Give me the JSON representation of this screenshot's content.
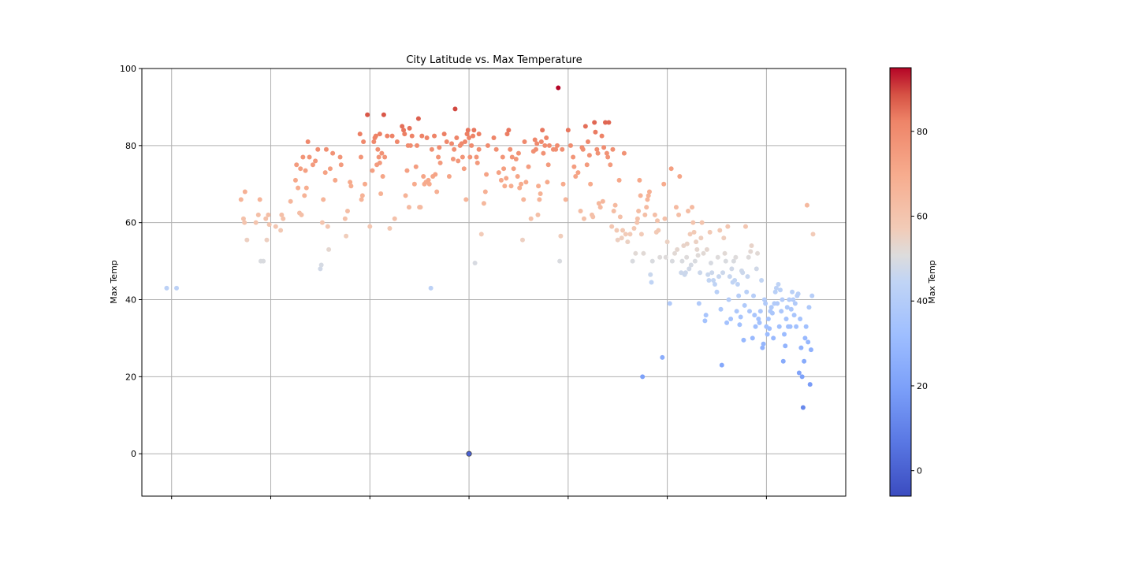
{
  "chart_data": {
    "type": "scatter",
    "title": "City Latitude vs. Max Temperature",
    "xlabel": "",
    "ylabel": "Max Temp",
    "xlim": [
      -56,
      86
    ],
    "ylim": [
      -11,
      100
    ],
    "x_ticks": [
      -50,
      -30,
      -10,
      10,
      30,
      50,
      70
    ],
    "y_ticks": [
      0,
      20,
      40,
      60,
      80,
      100
    ],
    "grid": true,
    "colormap": "coolwarm",
    "colorbar": {
      "label": "Max Temp",
      "range": [
        -6,
        95
      ],
      "ticks": [
        0,
        20,
        40,
        60,
        80
      ]
    },
    "colors": {
      "cold": "#3b4cc0",
      "neutral": "#dddddd",
      "hot": "#b40426"
    },
    "points": [
      [
        -51,
        43
      ],
      [
        -49,
        43
      ],
      [
        -36,
        66
      ],
      [
        -35.5,
        61
      ],
      [
        -35.3,
        60
      ],
      [
        -35.2,
        68
      ],
      [
        -34.8,
        55.5
      ],
      [
        -33,
        60
      ],
      [
        -32.5,
        62
      ],
      [
        -32.2,
        66
      ],
      [
        -32,
        50
      ],
      [
        -31.5,
        50
      ],
      [
        -31,
        61
      ],
      [
        -30.8,
        55.5
      ],
      [
        -30.5,
        62
      ],
      [
        -30.3,
        59.5
      ],
      [
        -29,
        59
      ],
      [
        -28,
        58
      ],
      [
        -27.8,
        62
      ],
      [
        -27.5,
        61
      ],
      [
        -26,
        65.5
      ],
      [
        -25,
        71
      ],
      [
        -24.8,
        75
      ],
      [
        -24.5,
        69
      ],
      [
        -24.2,
        62.5
      ],
      [
        -24,
        74
      ],
      [
        -23.8,
        62
      ],
      [
        -23.5,
        77
      ],
      [
        -23.2,
        67
      ],
      [
        -23,
        73.5
      ],
      [
        -22.8,
        69
      ],
      [
        -22.5,
        81
      ],
      [
        -22.2,
        77
      ],
      [
        -21.5,
        75
      ],
      [
        -21,
        76
      ],
      [
        -20.5,
        79
      ],
      [
        -20,
        48
      ],
      [
        -19.8,
        49
      ],
      [
        -19.6,
        60
      ],
      [
        -19.4,
        66
      ],
      [
        -19,
        73
      ],
      [
        -18.8,
        79
      ],
      [
        -18.5,
        59
      ],
      [
        -18.3,
        53
      ],
      [
        -18,
        74
      ],
      [
        -17.5,
        78
      ],
      [
        -17,
        71
      ],
      [
        -16,
        77
      ],
      [
        -15.8,
        75
      ],
      [
        -15,
        61
      ],
      [
        -14.8,
        56.5
      ],
      [
        -14.5,
        63
      ],
      [
        -14,
        70.5
      ],
      [
        -13.8,
        69.5
      ],
      [
        -12,
        83
      ],
      [
        -11.8,
        77
      ],
      [
        -11.7,
        66
      ],
      [
        -11.5,
        67
      ],
      [
        -11.3,
        81
      ],
      [
        -11,
        70
      ],
      [
        -10.5,
        88
      ],
      [
        -10,
        59
      ],
      [
        -9.5,
        73.5
      ],
      [
        -9.2,
        81
      ],
      [
        -9,
        82
      ],
      [
        -8.8,
        82.5
      ],
      [
        -8.6,
        75
      ],
      [
        -8.4,
        79
      ],
      [
        -8.2,
        77
      ],
      [
        -8,
        75.5
      ],
      [
        -8,
        83
      ],
      [
        -7.8,
        67.5
      ],
      [
        -7.6,
        78
      ],
      [
        -7.4,
        72
      ],
      [
        -7.2,
        88
      ],
      [
        -7,
        77
      ],
      [
        -6.5,
        82.5
      ],
      [
        -6,
        58.5
      ],
      [
        -5.5,
        82.5
      ],
      [
        -5,
        61
      ],
      [
        -4.5,
        81
      ],
      [
        -3.5,
        85
      ],
      [
        -3.2,
        84
      ],
      [
        -3,
        83
      ],
      [
        -2.8,
        67
      ],
      [
        -2.5,
        73.5
      ],
      [
        -2.3,
        80
      ],
      [
        -2.1,
        64
      ],
      [
        -2,
        84.5
      ],
      [
        -1.8,
        80
      ],
      [
        -1.5,
        82.5
      ],
      [
        -1,
        70
      ],
      [
        -0.7,
        74.5
      ],
      [
        -0.5,
        80
      ],
      [
        -0.2,
        87
      ],
      [
        0,
        64
      ],
      [
        0.2,
        64
      ],
      [
        0.5,
        82.5
      ],
      [
        0.8,
        72
      ],
      [
        1,
        70
      ],
      [
        1.3,
        70.5
      ],
      [
        1.5,
        82
      ],
      [
        1.8,
        71
      ],
      [
        2,
        70
      ],
      [
        2.3,
        43
      ],
      [
        2.5,
        79
      ],
      [
        2.7,
        72
      ],
      [
        3,
        82.5
      ],
      [
        3.2,
        72.5
      ],
      [
        3.5,
        68
      ],
      [
        3.8,
        77
      ],
      [
        4,
        79.5
      ],
      [
        4.2,
        75.5
      ],
      [
        5,
        83
      ],
      [
        5.5,
        81
      ],
      [
        6,
        72
      ],
      [
        6.5,
        80.5
      ],
      [
        6.8,
        76.5
      ],
      [
        7,
        79
      ],
      [
        7.2,
        89.5
      ],
      [
        7.5,
        82
      ],
      [
        7.8,
        76
      ],
      [
        8.2,
        80
      ],
      [
        8.5,
        80.5
      ],
      [
        8.7,
        77
      ],
      [
        9,
        74
      ],
      [
        9.2,
        81
      ],
      [
        9.4,
        66
      ],
      [
        9.6,
        83
      ],
      [
        9.8,
        84
      ],
      [
        10,
        82
      ],
      [
        10.2,
        77
      ],
      [
        10.5,
        80
      ],
      [
        10.8,
        82.5
      ],
      [
        11,
        84
      ],
      [
        11.2,
        49.5
      ],
      [
        11.5,
        77
      ],
      [
        11.7,
        75.5
      ],
      [
        12,
        79
      ],
      [
        12,
        83
      ],
      [
        12.5,
        57
      ],
      [
        13,
        65
      ],
      [
        13.3,
        68
      ],
      [
        13.5,
        72.5
      ],
      [
        13.8,
        80
      ],
      [
        15,
        82
      ],
      [
        15.5,
        79
      ],
      [
        16,
        73
      ],
      [
        16.5,
        71
      ],
      [
        16.8,
        77
      ],
      [
        17,
        74
      ],
      [
        17.2,
        69.5
      ],
      [
        17.5,
        71.5
      ],
      [
        17.7,
        83
      ],
      [
        18,
        84
      ],
      [
        18.3,
        79
      ],
      [
        18.5,
        69.5
      ],
      [
        18.7,
        77
      ],
      [
        19,
        74
      ],
      [
        19.5,
        76.5
      ],
      [
        19.8,
        72
      ],
      [
        20,
        78
      ],
      [
        20.2,
        69
      ],
      [
        20.5,
        70
      ],
      [
        20.8,
        55.5
      ],
      [
        21,
        66
      ],
      [
        21.2,
        81
      ],
      [
        21.5,
        70.5
      ],
      [
        22,
        74.5
      ],
      [
        22.5,
        61
      ],
      [
        23,
        78.5
      ],
      [
        23.3,
        81.5
      ],
      [
        23.5,
        79
      ],
      [
        23.7,
        80.5
      ],
      [
        23.9,
        62
      ],
      [
        24,
        69.5
      ],
      [
        24.2,
        66
      ],
      [
        24.4,
        67.5
      ],
      [
        24.6,
        81
      ],
      [
        24.8,
        84
      ],
      [
        25,
        78
      ],
      [
        25.3,
        80
      ],
      [
        25.6,
        82
      ],
      [
        25.8,
        70.5
      ],
      [
        26,
        75
      ],
      [
        26.2,
        80
      ],
      [
        27,
        79
      ],
      [
        27.5,
        79
      ],
      [
        27.8,
        80
      ],
      [
        28,
        95
      ],
      [
        28.3,
        50
      ],
      [
        28.5,
        56.5
      ],
      [
        28.8,
        79
      ],
      [
        29,
        70
      ],
      [
        29.5,
        66
      ],
      [
        30,
        84
      ],
      [
        30.5,
        80
      ],
      [
        31,
        77
      ],
      [
        31.2,
        74.5
      ],
      [
        31.5,
        72
      ],
      [
        32,
        73
      ],
      [
        32.5,
        63
      ],
      [
        32.8,
        79.5
      ],
      [
        33,
        79
      ],
      [
        33.2,
        61
      ],
      [
        33.5,
        85
      ],
      [
        33.8,
        75
      ],
      [
        34,
        81
      ],
      [
        34.3,
        77.5
      ],
      [
        34.5,
        70
      ],
      [
        34.8,
        62
      ],
      [
        35,
        61.5
      ],
      [
        35.3,
        86
      ],
      [
        35.5,
        83.5
      ],
      [
        35.8,
        79
      ],
      [
        36,
        78
      ],
      [
        36.2,
        65
      ],
      [
        36.5,
        64
      ],
      [
        36.8,
        82.5
      ],
      [
        37,
        65.5
      ],
      [
        37.2,
        79.5
      ],
      [
        37.5,
        86
      ],
      [
        37.8,
        78
      ],
      [
        38,
        77
      ],
      [
        38.2,
        86
      ],
      [
        38.5,
        75
      ],
      [
        38.8,
        59
      ],
      [
        39,
        79
      ],
      [
        39.2,
        63
      ],
      [
        39.5,
        64.5
      ],
      [
        39.8,
        58
      ],
      [
        40,
        55.5
      ],
      [
        40.3,
        71
      ],
      [
        40.5,
        61.5
      ],
      [
        40.8,
        56
      ],
      [
        41,
        58
      ],
      [
        41.3,
        78
      ],
      [
        41.6,
        57
      ],
      [
        42,
        55
      ],
      [
        42.5,
        57
      ],
      [
        43,
        50
      ],
      [
        43.3,
        58.5
      ],
      [
        43.6,
        52
      ],
      [
        43.9,
        60
      ],
      [
        44,
        61
      ],
      [
        44.2,
        63
      ],
      [
        44.4,
        71
      ],
      [
        44.6,
        67
      ],
      [
        44.8,
        57
      ],
      [
        45,
        20
      ],
      [
        45.2,
        52
      ],
      [
        45.5,
        62
      ],
      [
        45.8,
        64
      ],
      [
        46,
        66
      ],
      [
        46.2,
        67
      ],
      [
        46.4,
        68
      ],
      [
        46.6,
        46.5
      ],
      [
        46.8,
        44.5
      ],
      [
        47,
        50
      ],
      [
        47.5,
        62
      ],
      [
        47.8,
        57.5
      ],
      [
        48,
        60.5
      ],
      [
        48.2,
        58
      ],
      [
        48.5,
        51
      ],
      [
        49,
        25
      ],
      [
        49.3,
        70
      ],
      [
        49.5,
        61
      ],
      [
        49.7,
        51
      ],
      [
        50,
        55
      ],
      [
        50.5,
        39
      ],
      [
        50.8,
        74
      ],
      [
        51,
        50
      ],
      [
        51.5,
        52
      ],
      [
        51.8,
        64
      ],
      [
        52,
        53
      ],
      [
        52.3,
        62
      ],
      [
        52.5,
        72
      ],
      [
        52.8,
        47
      ],
      [
        53,
        50
      ],
      [
        53.3,
        54
      ],
      [
        53.5,
        46.5
      ],
      [
        53.7,
        47
      ],
      [
        53.9,
        51
      ],
      [
        54,
        54.5
      ],
      [
        54.2,
        63
      ],
      [
        54.4,
        48
      ],
      [
        54.6,
        57
      ],
      [
        54.8,
        49
      ],
      [
        55,
        64
      ],
      [
        55.2,
        60
      ],
      [
        55.4,
        57.5
      ],
      [
        55.6,
        50
      ],
      [
        55.8,
        55
      ],
      [
        56,
        53
      ],
      [
        56.2,
        51.5
      ],
      [
        56.4,
        39
      ],
      [
        56.6,
        47
      ],
      [
        56.8,
        56
      ],
      [
        57,
        60
      ],
      [
        57.3,
        52
      ],
      [
        57.6,
        34.5
      ],
      [
        57.8,
        36
      ],
      [
        58,
        53
      ],
      [
        58.2,
        46.5
      ],
      [
        58.4,
        45
      ],
      [
        58.6,
        57.5
      ],
      [
        58.8,
        49.5
      ],
      [
        59,
        47
      ],
      [
        59.3,
        45
      ],
      [
        59.6,
        44
      ],
      [
        60,
        42
      ],
      [
        60.2,
        51
      ],
      [
        60.4,
        46
      ],
      [
        60.6,
        58
      ],
      [
        60.8,
        37.5
      ],
      [
        61,
        23
      ],
      [
        61.2,
        47
      ],
      [
        61.4,
        56
      ],
      [
        61.6,
        52
      ],
      [
        61.8,
        50
      ],
      [
        62,
        34
      ],
      [
        62.2,
        59
      ],
      [
        62.4,
        40
      ],
      [
        62.6,
        46
      ],
      [
        62.8,
        35
      ],
      [
        63,
        48
      ],
      [
        63.2,
        44.5
      ],
      [
        63.4,
        50
      ],
      [
        63.6,
        45
      ],
      [
        63.8,
        51
      ],
      [
        64,
        37
      ],
      [
        64.2,
        44
      ],
      [
        64.4,
        41
      ],
      [
        64.6,
        33.5
      ],
      [
        64.8,
        35.5
      ],
      [
        65,
        47.5
      ],
      [
        65.2,
        47
      ],
      [
        65.4,
        29.5
      ],
      [
        65.6,
        38.5
      ],
      [
        65.8,
        59
      ],
      [
        66,
        42
      ],
      [
        66.2,
        46
      ],
      [
        66.4,
        51
      ],
      [
        66.6,
        37
      ],
      [
        66.8,
        52.5
      ],
      [
        67,
        54
      ],
      [
        67.2,
        30
      ],
      [
        67.4,
        41
      ],
      [
        67.6,
        36
      ],
      [
        67.8,
        33
      ],
      [
        68,
        48
      ],
      [
        68.2,
        52
      ],
      [
        68.4,
        35
      ],
      [
        68.6,
        34
      ],
      [
        68.8,
        37
      ],
      [
        69,
        45
      ],
      [
        69.2,
        27.5
      ],
      [
        69.4,
        28.5
      ],
      [
        69.6,
        40
      ],
      [
        69.8,
        39
      ],
      [
        70,
        33
      ],
      [
        70.2,
        31
      ],
      [
        70.4,
        35
      ],
      [
        70.6,
        32.5
      ],
      [
        70.8,
        37
      ],
      [
        71,
        38
      ],
      [
        71.2,
        36.5
      ],
      [
        71.4,
        30
      ],
      [
        71.6,
        39
      ],
      [
        71.8,
        42
      ],
      [
        72,
        43
      ],
      [
        72.2,
        39
      ],
      [
        72.4,
        44
      ],
      [
        72.6,
        33
      ],
      [
        72.8,
        42.5
      ],
      [
        73,
        37
      ],
      [
        73.2,
        40
      ],
      [
        73.4,
        24
      ],
      [
        73.6,
        31
      ],
      [
        73.8,
        28
      ],
      [
        74,
        35
      ],
      [
        74.2,
        38
      ],
      [
        74.4,
        33
      ],
      [
        74.6,
        40
      ],
      [
        74.8,
        33
      ],
      [
        75,
        37.5
      ],
      [
        75.2,
        42
      ],
      [
        75.4,
        40
      ],
      [
        75.6,
        36
      ],
      [
        75.8,
        39
      ],
      [
        76,
        33
      ],
      [
        76.2,
        41
      ],
      [
        76.4,
        41.5
      ],
      [
        76.6,
        21
      ],
      [
        76.8,
        35
      ],
      [
        77,
        27.5
      ],
      [
        77.2,
        20
      ],
      [
        77.4,
        12
      ],
      [
        77.6,
        24
      ],
      [
        77.8,
        30
      ],
      [
        78,
        33
      ],
      [
        78.2,
        64.5
      ],
      [
        78.4,
        29
      ],
      [
        78.6,
        38
      ],
      [
        78.8,
        18
      ],
      [
        79,
        27
      ],
      [
        79.2,
        41
      ],
      [
        79.4,
        57
      ]
    ]
  }
}
